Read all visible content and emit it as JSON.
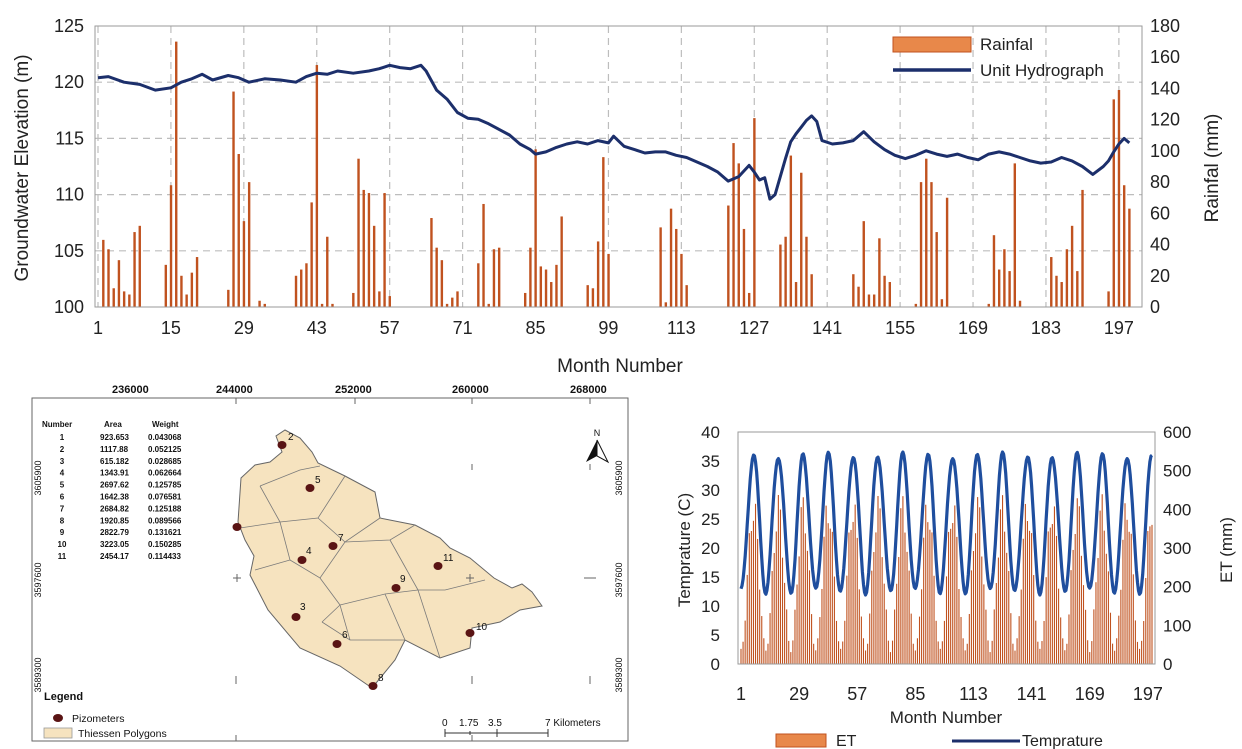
{
  "colors": {
    "bar": "#c0521f",
    "bar_light": "#e39a63",
    "line": "#1c2f6b",
    "line2": "#1f4e9e",
    "grid": "#bdbdbd",
    "polygon_fill": "#f7e3bf",
    "polygon_edge": "#5a5a5a",
    "piezometer": "#5a1414"
  },
  "chart_data": [
    {
      "type": "bar+line",
      "xlabel": "Month Number",
      "ylabel_left": "Groundwater Elevation (m)",
      "ylabel_right": "Rainfal (mm)",
      "x_ticks": [
        1,
        15,
        29,
        43,
        57,
        71,
        85,
        99,
        113,
        127,
        141,
        155,
        169,
        183,
        197
      ],
      "x_range": [
        1,
        199
      ],
      "y_left_ticks": [
        100,
        105,
        110,
        115,
        120,
        125
      ],
      "y_left_range": [
        100,
        125
      ],
      "y_right_ticks": [
        0,
        20,
        40,
        60,
        80,
        100,
        120,
        140,
        160,
        180
      ],
      "y_right_range": [
        0,
        180
      ],
      "grid": true,
      "legend_position": "top-right",
      "series": [
        {
          "name": "Rainfal",
          "kind": "bar",
          "axis": "right",
          "points": [
            [
              2,
              43
            ],
            [
              3,
              37
            ],
            [
              4,
              12
            ],
            [
              5,
              30
            ],
            [
              6,
              10
            ],
            [
              7,
              8
            ],
            [
              8,
              48
            ],
            [
              9,
              52
            ],
            [
              14,
              27
            ],
            [
              15,
              78
            ],
            [
              16,
              170
            ],
            [
              17,
              20
            ],
            [
              18,
              8
            ],
            [
              19,
              22
            ],
            [
              20,
              32
            ],
            [
              26,
              11
            ],
            [
              27,
              138
            ],
            [
              28,
              98
            ],
            [
              29,
              55
            ],
            [
              30,
              80
            ],
            [
              32,
              4
            ],
            [
              33,
              2
            ],
            [
              39,
              20
            ],
            [
              40,
              24
            ],
            [
              41,
              28
            ],
            [
              42,
              67
            ],
            [
              43,
              155
            ],
            [
              44,
              2
            ],
            [
              45,
              45
            ],
            [
              46,
              2
            ],
            [
              50,
              9
            ],
            [
              51,
              95
            ],
            [
              52,
              75
            ],
            [
              53,
              73
            ],
            [
              54,
              52
            ],
            [
              55,
              10
            ],
            [
              56,
              73
            ],
            [
              57,
              7
            ],
            [
              65,
              57
            ],
            [
              66,
              38
            ],
            [
              67,
              30
            ],
            [
              68,
              2
            ],
            [
              69,
              6
            ],
            [
              70,
              10
            ],
            [
              74,
              28
            ],
            [
              75,
              66
            ],
            [
              76,
              2
            ],
            [
              77,
              37
            ],
            [
              78,
              38
            ],
            [
              83,
              9
            ],
            [
              84,
              38
            ],
            [
              85,
              101
            ],
            [
              86,
              26
            ],
            [
              87,
              24
            ],
            [
              88,
              16
            ],
            [
              89,
              27
            ],
            [
              90,
              58
            ],
            [
              95,
              14
            ],
            [
              96,
              12
            ],
            [
              97,
              42
            ],
            [
              98,
              96
            ],
            [
              99,
              34
            ],
            [
              109,
              51
            ],
            [
              110,
              3
            ],
            [
              111,
              63
            ],
            [
              112,
              50
            ],
            [
              113,
              34
            ],
            [
              114,
              14
            ],
            [
              122,
              65
            ],
            [
              123,
              105
            ],
            [
              124,
              92
            ],
            [
              125,
              50
            ],
            [
              126,
              9
            ],
            [
              127,
              121
            ],
            [
              132,
              40
            ],
            [
              133,
              45
            ],
            [
              134,
              97
            ],
            [
              135,
              16
            ],
            [
              136,
              86
            ],
            [
              137,
              45
            ],
            [
              138,
              21
            ],
            [
              146,
              21
            ],
            [
              147,
              13
            ],
            [
              148,
              55
            ],
            [
              149,
              8
            ],
            [
              150,
              8
            ],
            [
              151,
              44
            ],
            [
              152,
              20
            ],
            [
              153,
              16
            ],
            [
              158,
              2
            ],
            [
              159,
              80
            ],
            [
              160,
              95
            ],
            [
              161,
              80
            ],
            [
              162,
              48
            ],
            [
              163,
              5
            ],
            [
              164,
              70
            ],
            [
              172,
              2
            ],
            [
              173,
              46
            ],
            [
              174,
              24
            ],
            [
              175,
              37
            ],
            [
              176,
              23
            ],
            [
              177,
              92
            ],
            [
              178,
              4
            ],
            [
              184,
              32
            ],
            [
              185,
              20
            ],
            [
              186,
              16
            ],
            [
              187,
              37
            ],
            [
              188,
              52
            ],
            [
              189,
              23
            ],
            [
              190,
              75
            ],
            [
              195,
              10
            ],
            [
              196,
              133
            ],
            [
              197,
              139
            ],
            [
              198,
              78
            ],
            [
              199,
              63
            ]
          ]
        },
        {
          "name": "Unit Hydrograph",
          "kind": "line",
          "axis": "left",
          "points": [
            [
              1,
              120.4
            ],
            [
              3,
              120.5
            ],
            [
              6,
              120
            ],
            [
              9,
              119.8
            ],
            [
              12,
              119.3
            ],
            [
              15,
              119.5
            ],
            [
              17,
              120
            ],
            [
              19,
              120.3
            ],
            [
              21,
              120.7
            ],
            [
              23,
              120.2
            ],
            [
              26,
              120.6
            ],
            [
              28,
              120.4
            ],
            [
              30,
              120
            ],
            [
              33,
              120.3
            ],
            [
              36,
              120.2
            ],
            [
              39,
              120
            ],
            [
              41,
              120.5
            ],
            [
              43,
              120.8
            ],
            [
              45,
              120.7
            ],
            [
              47,
              121
            ],
            [
              50,
              120.8
            ],
            [
              53,
              121
            ],
            [
              55,
              121.2
            ],
            [
              57,
              121.5
            ],
            [
              59,
              121.3
            ],
            [
              61,
              121.2
            ],
            [
              63,
              121.5
            ],
            [
              64,
              121
            ],
            [
              66,
              119.3
            ],
            [
              68,
              118.5
            ],
            [
              70,
              117.3
            ],
            [
              72,
              116.8
            ],
            [
              74,
              116.7
            ],
            [
              76,
              116.3
            ],
            [
              78,
              115.8
            ],
            [
              80,
              115.3
            ],
            [
              82,
              114.5
            ],
            [
              84,
              114
            ],
            [
              85,
              113.6
            ],
            [
              87,
              113.8
            ],
            [
              89,
              114.2
            ],
            [
              91,
              114.5
            ],
            [
              93,
              114.7
            ],
            [
              95,
              114.5
            ],
            [
              97,
              114.8
            ],
            [
              99,
              114.6
            ],
            [
              100,
              115.2
            ],
            [
              102,
              114.3
            ],
            [
              104,
              114
            ],
            [
              106,
              113.7
            ],
            [
              108,
              113.8
            ],
            [
              110,
              113.8
            ],
            [
              112,
              113.5
            ],
            [
              114,
              113.3
            ],
            [
              116,
              112.9
            ],
            [
              118,
              112.5
            ],
            [
              120,
              112
            ],
            [
              122,
              111.2
            ],
            [
              124,
              111.6
            ],
            [
              126,
              112.6
            ],
            [
              127,
              112
            ],
            [
              128,
              111.3
            ],
            [
              129,
              111.5
            ],
            [
              130,
              109.6
            ],
            [
              131,
              110
            ],
            [
              132,
              111.6
            ],
            [
              133,
              113.2
            ],
            [
              134,
              114.7
            ],
            [
              135,
              115.4
            ],
            [
              136,
              116
            ],
            [
              137,
              116.6
            ],
            [
              138,
              117
            ],
            [
              139,
              116.5
            ],
            [
              140,
              114.8
            ],
            [
              142,
              114.5
            ],
            [
              144,
              114.6
            ],
            [
              146,
              114.8
            ],
            [
              148,
              115.6
            ],
            [
              150,
              114.7
            ],
            [
              152,
              114
            ],
            [
              154,
              113.5
            ],
            [
              156,
              113.2
            ],
            [
              158,
              113.5
            ],
            [
              160,
              113.9
            ],
            [
              162,
              113.6
            ],
            [
              164,
              113.4
            ],
            [
              166,
              113.6
            ],
            [
              168,
              113.3
            ],
            [
              170,
              113.1
            ],
            [
              172,
              113.6
            ],
            [
              174,
              113.8
            ],
            [
              176,
              113.6
            ],
            [
              178,
              113.3
            ],
            [
              180,
              113
            ],
            [
              182,
              112.8
            ],
            [
              184,
              112.9
            ],
            [
              186,
              113.3
            ],
            [
              188,
              113
            ],
            [
              190,
              112.5
            ],
            [
              192,
              111.8
            ],
            [
              194,
              112.5
            ],
            [
              195,
              113
            ],
            [
              196,
              113.8
            ],
            [
              197,
              114.5
            ],
            [
              198,
              115
            ],
            [
              199,
              114.6
            ]
          ]
        }
      ]
    },
    {
      "type": "bar+line",
      "xlabel": "Month Number",
      "ylabel_left": "Temprature (C)",
      "ylabel_right": "ET (mm)",
      "x_ticks": [
        1,
        29,
        57,
        85,
        113,
        141,
        169,
        197
      ],
      "x_range": [
        1,
        199
      ],
      "y_left_ticks": [
        0,
        5,
        10,
        15,
        20,
        25,
        30,
        35,
        40
      ],
      "y_left_range": [
        0,
        40
      ],
      "y_right_ticks": [
        0,
        100,
        200,
        300,
        400,
        500,
        600
      ],
      "y_right_range": [
        0,
        600
      ],
      "legend_position": "bottom",
      "series": [
        {
          "name": "ET",
          "kind": "bar",
          "axis": "right",
          "seasonal": {
            "period": 12,
            "min": 35,
            "max": 400
          }
        },
        {
          "name": "Temprature",
          "kind": "line",
          "axis": "left",
          "seasonal": {
            "period": 12,
            "min": 12.5,
            "max": 36
          }
        }
      ]
    }
  ],
  "map": {
    "top_ticks": [
      "236000",
      "244000",
      "252000",
      "260000",
      "268000"
    ],
    "left_ticks": [
      "3605900",
      "3597600",
      "3589300"
    ],
    "right_ticks": [
      "3605900",
      "3597600",
      "3589300"
    ],
    "table": {
      "headers": [
        "Number",
        "Area",
        "Weight"
      ],
      "rows": [
        [
          "1",
          "923.653",
          "0.043068"
        ],
        [
          "2",
          "1117.88",
          "0.052125"
        ],
        [
          "3",
          "615.182",
          "0.028685"
        ],
        [
          "4",
          "1343.91",
          "0.062664"
        ],
        [
          "5",
          "2697.62",
          "0.125785"
        ],
        [
          "6",
          "1642.38",
          "0.076581"
        ],
        [
          "7",
          "2684.82",
          "0.125188"
        ],
        [
          "8",
          "1920.85",
          "0.089566"
        ],
        [
          "9",
          "2822.79",
          "0.131621"
        ],
        [
          "10",
          "3223.05",
          "0.150285"
        ],
        [
          "11",
          "2454.17",
          "0.114433"
        ]
      ]
    },
    "north_label": "N",
    "legend_title": "Legend",
    "legend_items": [
      "Pizometers",
      "Thiessen Polygons"
    ],
    "scale_labels": [
      "0",
      "1.75",
      "3.5",
      "7 Kilometers"
    ],
    "piezometer_labels": [
      "2",
      "5",
      "7",
      "4",
      "9",
      "11",
      "3",
      "6",
      "10",
      "8"
    ]
  }
}
